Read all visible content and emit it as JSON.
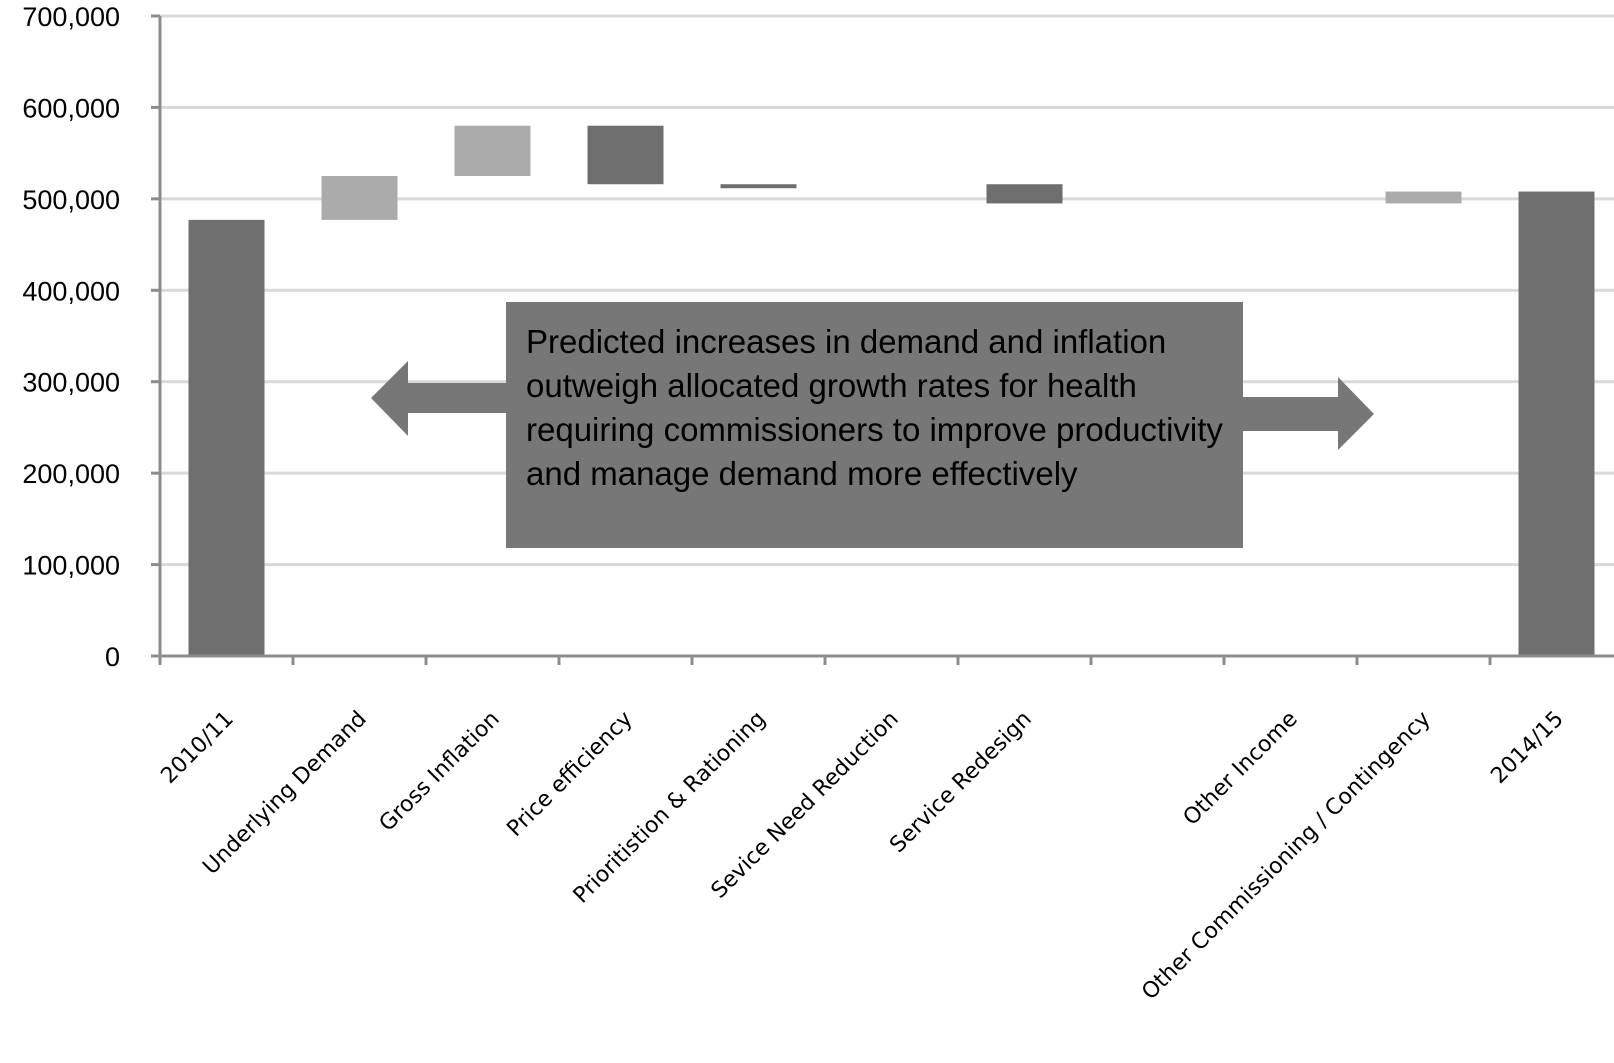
{
  "chart_data": {
    "type": "waterfall",
    "title": "",
    "xlabel": "",
    "ylabel": "",
    "ylim": [
      0,
      700000
    ],
    "yticks": [
      "0",
      "100,000",
      "200,000",
      "300,000",
      "400,000",
      "500,000",
      "600,000",
      "700,000"
    ],
    "ytick_values": [
      0,
      100000,
      200000,
      300000,
      400000,
      500000,
      600000,
      700000
    ],
    "grid": true,
    "categories": [
      "2010/11",
      "Underlying Demand",
      "Gross Inflation",
      "Price efficiency",
      "Prioritistion & Rationing",
      "Sevice Need Reduction",
      "Service Redesign",
      "",
      "Other Income",
      "Other Commissioning / Contingency",
      "2014/15"
    ],
    "bars": [
      {
        "category": "2010/11",
        "base": 0,
        "top": 477000,
        "shade": "dark"
      },
      {
        "category": "Underlying Demand",
        "base": 477000,
        "top": 525000,
        "shade": "light"
      },
      {
        "category": "Gross Inflation",
        "base": 525000,
        "top": 580000,
        "shade": "light"
      },
      {
        "category": "Price efficiency",
        "base": 516000,
        "top": 580000,
        "shade": "dark"
      },
      {
        "category": "Prioritistion & Rationing",
        "base": 512000,
        "top": 516000,
        "shade": "dark"
      },
      {
        "category": "Sevice Need Reduction",
        "base": null,
        "top": null,
        "shade": "dark"
      },
      {
        "category": "Service Redesign",
        "base": 495000,
        "top": 516000,
        "shade": "dark"
      },
      {
        "category": "",
        "base": null,
        "top": null,
        "shade": "dark"
      },
      {
        "category": "Other Income",
        "base": null,
        "top": null,
        "shade": "dark"
      },
      {
        "category": "Other Commissioning / Contingency",
        "base": 495000,
        "top": 508000,
        "shade": "light"
      },
      {
        "category": "2014/15",
        "base": 0,
        "top": 508000,
        "shade": "dark"
      }
    ],
    "annotation": "Predicted increases in demand and inflation outweigh allocated growth rates for health requiring commissioners to improve productivity and manage demand more effectively"
  },
  "colors": {
    "dark_bar": "#6e6e6e",
    "light_bar": "#ababab",
    "grid": "#d9d9d9",
    "axis": "#8c8c8c",
    "annotation_box": "#777777",
    "arrow": "#777777"
  }
}
